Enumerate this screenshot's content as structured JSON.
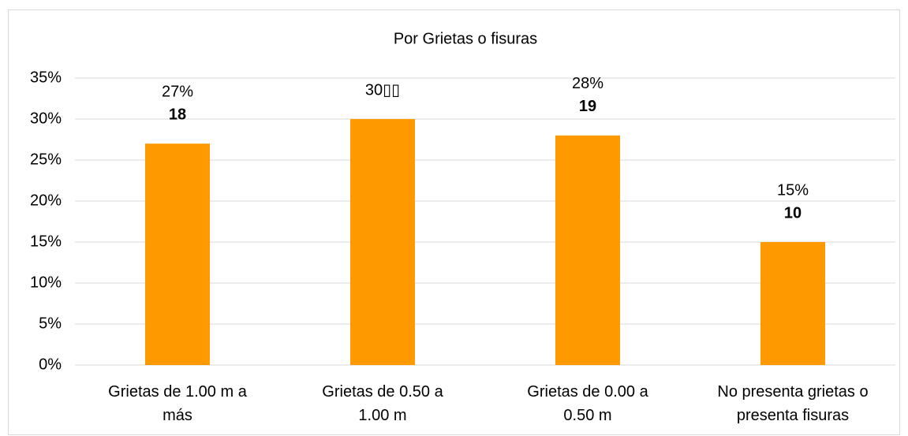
{
  "chart_data": {
    "type": "bar",
    "title": "Por Grietas o fisuras",
    "categories": [
      "Grietas de 1.00 m a más",
      "Grietas de 0.50 a 1.00 m",
      "Grietas de 0.00 a 0.50 m",
      "No presenta grietas o presenta fisuras"
    ],
    "values": [
      27,
      30,
      28,
      15
    ],
    "value_labels": [
      "27%",
      "30▯▯",
      "28%",
      "15%"
    ],
    "counts": [
      18,
      null,
      19,
      10
    ],
    "color": "#ff9900",
    "ylim": [
      0,
      35
    ],
    "yticks": [
      {
        "value": 0,
        "label": "0%"
      },
      {
        "value": 5,
        "label": "5%"
      },
      {
        "value": 10,
        "label": "10%"
      },
      {
        "value": 15,
        "label": "15%"
      },
      {
        "value": 20,
        "label": "20%"
      },
      {
        "value": 25,
        "label": "25%"
      },
      {
        "value": 30,
        "label": "30%"
      },
      {
        "value": 35,
        "label": "35%"
      }
    ],
    "grid": true
  }
}
